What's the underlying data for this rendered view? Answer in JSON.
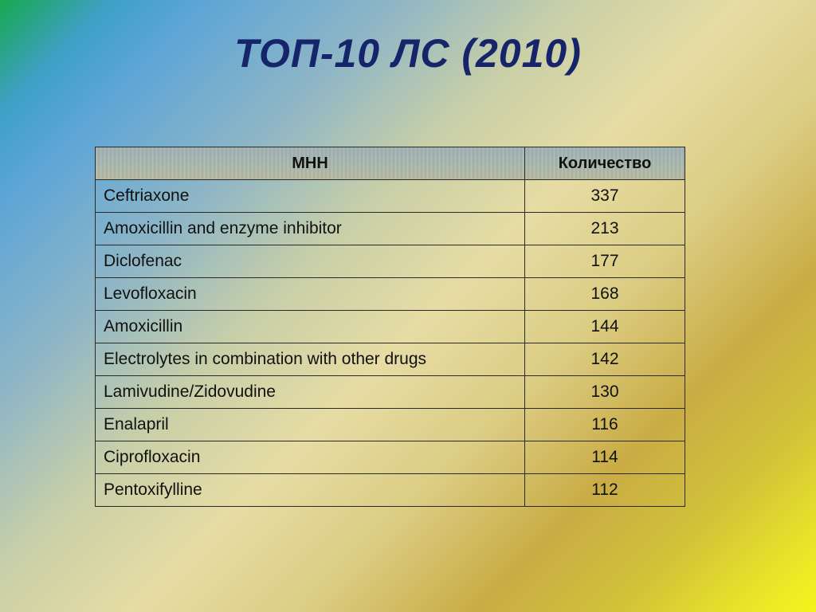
{
  "slide": {
    "title": "ТОП-10 ЛС (2010)"
  },
  "table": {
    "headers": {
      "name": "МНН",
      "quantity": "Количество"
    },
    "rows": [
      {
        "name": "Ceftriaxone",
        "quantity": "337"
      },
      {
        "name": "Amoxicillin and enzyme inhibitor",
        "quantity": "213"
      },
      {
        "name": "Diclofenac",
        "quantity": "177"
      },
      {
        "name": "Levofloxacin",
        "quantity": "168"
      },
      {
        "name": "Amoxicillin",
        "quantity": "144"
      },
      {
        "name": "Electrolytes in combination with other drugs",
        "quantity": "142"
      },
      {
        "name": "Lamivudine/Zidovudine",
        "quantity": "130"
      },
      {
        "name": "Enalapril",
        "quantity": "116"
      },
      {
        "name": "Ciprofloxacin",
        "quantity": "114"
      },
      {
        "name": "Pentoxifylline",
        "quantity": "112"
      }
    ]
  }
}
